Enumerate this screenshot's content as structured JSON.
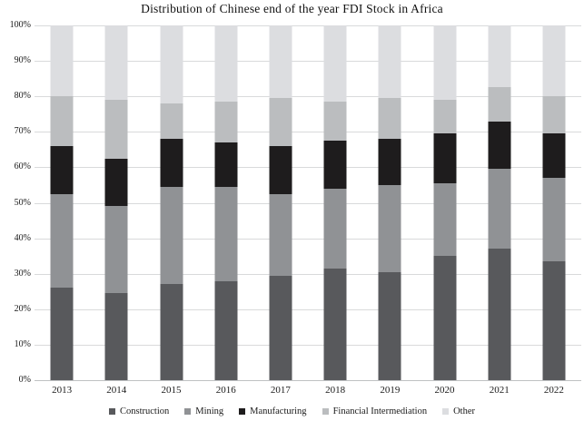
{
  "chart_data": {
    "type": "bar",
    "subtype": "stacked-100-percent",
    "title": "Distribution of Chinese end of the year FDI Stock in Africa",
    "categories": [
      "2013",
      "2014",
      "2015",
      "2016",
      "2017",
      "2018",
      "2019",
      "2020",
      "2021",
      "2022"
    ],
    "series": [
      {
        "name": "Construction",
        "color": "#58595c",
        "values": [
          26,
          24.5,
          27,
          28,
          29.5,
          31.5,
          30.5,
          35,
          37,
          33.5
        ]
      },
      {
        "name": "Mining",
        "color": "#909295",
        "values": [
          26.5,
          24.5,
          27.5,
          26.5,
          23,
          22.5,
          24.5,
          20.5,
          22.5,
          23.5
        ]
      },
      {
        "name": "Manufacturing",
        "color": "#1e1c1d",
        "values": [
          13.5,
          13.5,
          13.5,
          12.5,
          13.5,
          13.5,
          13,
          14,
          13.5,
          12.5
        ]
      },
      {
        "name": "Financial Intermediation",
        "color": "#bbbdbf",
        "values": [
          14,
          16.5,
          10,
          11.5,
          13.5,
          11,
          11.5,
          9.5,
          9.5,
          10.5
        ]
      },
      {
        "name": "Other",
        "color": "#dcdde0",
        "values": [
          20,
          21,
          22,
          21.5,
          20.5,
          21.5,
          20.5,
          21,
          17.5,
          20
        ]
      }
    ],
    "y_axis": {
      "min": 0,
      "max": 100,
      "tick_step": 10,
      "tick_labels": [
        "0%",
        "10%",
        "20%",
        "30%",
        "40%",
        "50%",
        "60%",
        "70%",
        "80%",
        "90%",
        "100%"
      ]
    },
    "grid": true,
    "gridline_color": "#d9dadb",
    "axis_line_color": "#bfc1c3",
    "legend_position": "bottom",
    "background_color": "#ffffff"
  }
}
